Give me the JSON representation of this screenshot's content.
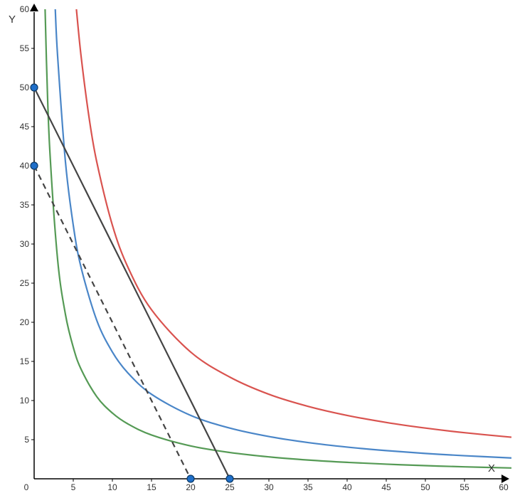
{
  "chart_data": {
    "type": "line",
    "title": "",
    "xlabel": "X",
    "ylabel": "Y",
    "xlim": [
      0,
      60
    ],
    "ylim": [
      0,
      60
    ],
    "origin_label": "0",
    "x_ticks": [
      "5",
      "10",
      "15",
      "20",
      "25",
      "30",
      "35",
      "40",
      "45",
      "50",
      "55",
      "60"
    ],
    "y_ticks": [
      "5",
      "10",
      "15",
      "20",
      "25",
      "30",
      "35",
      "40",
      "45",
      "50",
      "55",
      "60"
    ],
    "grid": false,
    "legend": "none",
    "colors": {
      "red": "#d9534f",
      "blue": "#4a86c8",
      "green": "#559a55",
      "budget": "#444444",
      "point_fill": "#1f6fc9",
      "point_stroke": "#0d3a66"
    },
    "curves": [
      {
        "id": "indifference-curve-high",
        "color": "#d9534f",
        "x": [
          5.4,
          6,
          7,
          8,
          10,
          12,
          15,
          20,
          25,
          30,
          35,
          40,
          45,
          50,
          55,
          61
        ],
        "y": [
          60,
          54,
          46.3,
          40.5,
          32.4,
          27,
          21.6,
          16.2,
          13.0,
          10.8,
          9.26,
          8.1,
          7.2,
          6.48,
          5.89,
          5.31
        ]
      },
      {
        "id": "indifference-curve-mid",
        "color": "#4a86c8",
        "x": [
          2.7,
          3,
          4,
          5,
          6,
          8,
          10,
          12,
          15,
          20,
          25,
          30,
          35,
          40,
          45,
          50,
          55,
          61
        ],
        "y": [
          60,
          54,
          40.5,
          32.4,
          27,
          20.25,
          16.2,
          13.5,
          10.8,
          8.1,
          6.48,
          5.4,
          4.63,
          4.05,
          3.6,
          3.24,
          2.95,
          2.66
        ]
      },
      {
        "id": "indifference-curve-low",
        "color": "#559a55",
        "x": [
          1.4,
          1.6,
          2,
          3,
          4,
          5,
          6,
          8,
          10,
          12,
          15,
          20,
          25,
          30,
          35,
          40,
          45,
          50,
          55,
          61
        ],
        "y": [
          60,
          52.5,
          42,
          28,
          21,
          16.8,
          14,
          10.5,
          8.4,
          7,
          5.6,
          4.2,
          3.36,
          2.8,
          2.4,
          2.1,
          1.87,
          1.68,
          1.53,
          1.38
        ]
      }
    ],
    "budget_lines": [
      {
        "id": "budget-line-original",
        "style": "solid",
        "x": [
          0,
          25
        ],
        "y": [
          50,
          0
        ]
      },
      {
        "id": "budget-line-new",
        "style": "dashed",
        "x": [
          0,
          20
        ],
        "y": [
          40,
          0
        ]
      }
    ],
    "points": [
      {
        "id": "point-y-intercept-50",
        "x": 0,
        "y": 50
      },
      {
        "id": "point-y-intercept-40",
        "x": 0,
        "y": 40
      },
      {
        "id": "point-x-intercept-20",
        "x": 20,
        "y": 0
      },
      {
        "id": "point-x-intercept-25",
        "x": 25,
        "y": 0
      }
    ]
  }
}
